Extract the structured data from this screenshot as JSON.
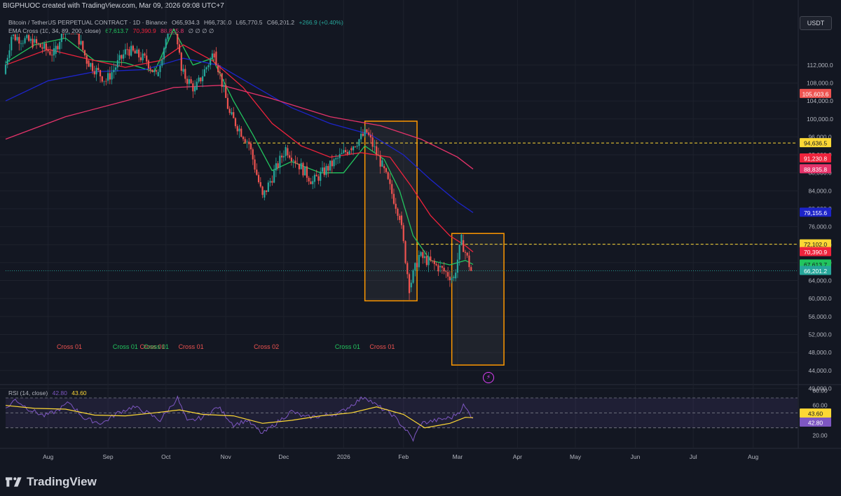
{
  "header": {
    "attribution": "BIGPHUOC created with TradingView.com, Mar 09, 2026 09:08 UTC+7"
  },
  "legend": {
    "symbol": "Bitcoin / TetherUS PERPETUAL CONTRACT · 1D · Binance",
    "open": "O65,934.3",
    "high": "H66,730.0",
    "low": "L65,770.5",
    "close": "C66,201.2",
    "change": "+266.9 (+0.40%)",
    "ema_label": "EMA Cross (10, 34, 89, 200, close)",
    "ema_val1": "67,613.7",
    "ema_val2": "70,390.9",
    "ema_val3": "88,835.8",
    "ema_rest": "∅ ∅ ∅ ∅",
    "rsi_label": "RSI (14, close)",
    "rsi_val": "42.80",
    "rsi_ma": "43.60"
  },
  "toolbar": {
    "currency": "USDT"
  },
  "brand": {
    "name": "TradingView"
  },
  "colors": {
    "background": "#131722",
    "up": "#26a69a",
    "down": "#ef5350",
    "ema10": "#22c55e",
    "ema34": "#ef233c",
    "ema89": "#1d24c9",
    "ema200": "#e5336a",
    "box": "#ff9800",
    "rsi": "#7e57c2",
    "rsi_ma": "#fdd835"
  },
  "chart_data": {
    "type": "candlestick",
    "y_axis": {
      "min": 38000,
      "max": 118000,
      "ticks": [
        "112,000.0",
        "108,000.0",
        "104,000.0",
        "100,000.0",
        "96,000.0",
        "92,000.0",
        "88,000.0",
        "84,000.0",
        "80,000.0",
        "76,000.0",
        "72,000.0",
        "68,000.0",
        "64,000.0",
        "60,000.0",
        "56,000.0",
        "52,000.0",
        "48,000.0",
        "44,000.0",
        "40,000.0"
      ],
      "tick_values": [
        112000,
        108000,
        104000,
        100000,
        96000,
        92000,
        88000,
        84000,
        80000,
        76000,
        72000,
        68000,
        64000,
        60000,
        56000,
        52000,
        48000,
        44000,
        40000
      ]
    },
    "x_axis": {
      "labels": [
        "Aug",
        "Sep",
        "Oct",
        "Nov",
        "Dec",
        "2026",
        "Feb",
        "Mar",
        "Apr",
        "May",
        "Jun",
        "Jul",
        "Aug"
      ],
      "label_dates": [
        "2025-08-01",
        "2025-09-01",
        "2025-10-01",
        "2025-11-01",
        "2025-12-01",
        "2026-01-01",
        "2026-02-01",
        "2026-03-01",
        "2026-04-01",
        "2026-05-01",
        "2026-06-01",
        "2026-07-01",
        "2026-08-01"
      ]
    },
    "price_labels": [
      {
        "text": "105,603.6",
        "value": 105603.6,
        "color": "#ef5350"
      },
      {
        "text": "94,636.5",
        "value": 94636.5,
        "color": "#fdd835"
      },
      {
        "text": "91,230.8",
        "value": 91230.8,
        "color": "#ef233c"
      },
      {
        "text": "88,835.8",
        "value": 88835.8,
        "color": "#e5336a"
      },
      {
        "text": "79,155.6",
        "value": 79155.6,
        "color": "#1d24c9"
      },
      {
        "text": "72,102.0",
        "value": 72102.0,
        "color": "#fdd835"
      },
      {
        "text": "70,390.9",
        "value": 70390.9,
        "color": "#ef233c"
      },
      {
        "text": "67,613.7",
        "value": 67613.7,
        "color": "#22c55e"
      },
      {
        "text": "66,201.2",
        "value": 66201.2,
        "color": "#26a69a"
      }
    ],
    "horizontal_lines": [
      {
        "value": 94636.5,
        "from_date": "2025-11-10",
        "color": "#fdd835",
        "style": "dashed"
      },
      {
        "value": 72102.0,
        "from_date": "2026-02-05",
        "color": "#fdd835",
        "style": "dashed"
      }
    ],
    "boxes": [
      {
        "from_date": "2026-01-12",
        "to_date": "2026-02-08",
        "top": 99500,
        "bottom": 59500
      },
      {
        "from_date": "2026-02-26",
        "to_date": "2026-03-25",
        "top": 74500,
        "bottom": 45200
      }
    ],
    "annotations": [
      {
        "text": "Cross 01",
        "date": "2025-08-12",
        "color": "#ef5350"
      },
      {
        "text": "Cross 01",
        "date": "2025-09-10",
        "color": "#22c55e"
      },
      {
        "text": "Cross 01",
        "date": "2025-09-24",
        "color": "#ef5350"
      },
      {
        "text": "Cross 01",
        "date": "2025-09-26",
        "color": "#22c55e"
      },
      {
        "text": "Cross 01",
        "date": "2025-10-14",
        "color": "#ef5350"
      },
      {
        "text": "Cross 02",
        "date": "2025-11-22",
        "color": "#ef5350"
      },
      {
        "text": "Cross 01",
        "date": "2026-01-03",
        "color": "#22c55e"
      },
      {
        "text": "Cross 01",
        "date": "2026-01-21",
        "color": "#ef5350"
      }
    ],
    "ema_lines": [
      {
        "name": "EMA 10",
        "color": "#22c55e",
        "points": [
          [
            "2025-07-10",
            112500
          ],
          [
            "2025-07-25",
            116500
          ],
          [
            "2025-08-10",
            118000
          ],
          [
            "2025-08-25",
            113000
          ],
          [
            "2025-09-10",
            112500
          ],
          [
            "2025-09-25",
            110500
          ],
          [
            "2025-10-05",
            120000
          ],
          [
            "2025-10-15",
            112000
          ],
          [
            "2025-10-25",
            113500
          ],
          [
            "2025-11-05",
            104000
          ],
          [
            "2025-11-15",
            96500
          ],
          [
            "2025-11-25",
            88500
          ],
          [
            "2025-12-05",
            90500
          ],
          [
            "2025-12-20",
            88000
          ],
          [
            "2026-01-01",
            88000
          ],
          [
            "2026-01-12",
            94000
          ],
          [
            "2026-01-22",
            91000
          ],
          [
            "2026-01-30",
            84000
          ],
          [
            "2026-02-06",
            74000
          ],
          [
            "2026-02-15",
            68500
          ],
          [
            "2026-02-25",
            67500
          ],
          [
            "2026-03-05",
            68500
          ],
          [
            "2026-03-09",
            67613.7
          ]
        ]
      },
      {
        "name": "EMA 34",
        "color": "#ef233c",
        "points": [
          [
            "2025-07-10",
            112000
          ],
          [
            "2025-08-01",
            115500
          ],
          [
            "2025-08-20",
            113500
          ],
          [
            "2025-09-10",
            111500
          ],
          [
            "2025-09-28",
            113000
          ],
          [
            "2025-10-10",
            116500
          ],
          [
            "2025-10-25",
            113000
          ],
          [
            "2025-11-10",
            107000
          ],
          [
            "2025-11-25",
            99000
          ],
          [
            "2025-12-10",
            94000
          ],
          [
            "2025-12-25",
            91500
          ],
          [
            "2026-01-10",
            92500
          ],
          [
            "2026-01-25",
            91500
          ],
          [
            "2026-02-05",
            85000
          ],
          [
            "2026-02-15",
            78500
          ],
          [
            "2026-02-25",
            74000
          ],
          [
            "2026-03-05",
            71800
          ],
          [
            "2026-03-09",
            70390.9
          ]
        ]
      },
      {
        "name": "EMA 89",
        "color": "#1d24c9",
        "points": [
          [
            "2025-07-10",
            104000
          ],
          [
            "2025-08-01",
            108500
          ],
          [
            "2025-08-25",
            110500
          ],
          [
            "2025-09-20",
            111000
          ],
          [
            "2025-10-10",
            113500
          ],
          [
            "2025-10-28",
            112000
          ],
          [
            "2025-11-15",
            107500
          ],
          [
            "2025-12-05",
            102500
          ],
          [
            "2025-12-25",
            99000
          ],
          [
            "2026-01-15",
            96500
          ],
          [
            "2026-02-01",
            92000
          ],
          [
            "2026-02-15",
            86500
          ],
          [
            "2026-03-01",
            81500
          ],
          [
            "2026-03-09",
            79155.6
          ]
        ]
      },
      {
        "name": "EMA 200",
        "color": "#e5336a",
        "points": [
          [
            "2025-07-10",
            95500
          ],
          [
            "2025-08-10",
            100500
          ],
          [
            "2025-09-10",
            104000
          ],
          [
            "2025-10-05",
            107000
          ],
          [
            "2025-10-30",
            107500
          ],
          [
            "2025-11-25",
            104500
          ],
          [
            "2025-12-25",
            100500
          ],
          [
            "2026-01-20",
            98500
          ],
          [
            "2026-02-10",
            95500
          ],
          [
            "2026-03-01",
            91500
          ],
          [
            "2026-03-09",
            88835.8
          ]
        ]
      }
    ],
    "candles_ohlc_anchor": [
      [
        "2025-07-10",
        110000
      ],
      [
        "2025-07-14",
        118500
      ],
      [
        "2025-07-25",
        117000
      ],
      [
        "2025-08-05",
        114500
      ],
      [
        "2025-08-13",
        123500
      ],
      [
        "2025-08-22",
        113000
      ],
      [
        "2025-09-01",
        108500
      ],
      [
        "2025-09-12",
        115500
      ],
      [
        "2025-09-22",
        113000
      ],
      [
        "2025-09-27",
        109500
      ],
      [
        "2025-10-06",
        124500
      ],
      [
        "2025-10-10",
        110500
      ],
      [
        "2025-10-17",
        106500
      ],
      [
        "2025-10-27",
        115000
      ],
      [
        "2025-11-04",
        101000
      ],
      [
        "2025-11-14",
        94500
      ],
      [
        "2025-11-21",
        82500
      ],
      [
        "2025-12-03",
        93500
      ],
      [
        "2025-12-17",
        86000
      ],
      [
        "2026-01-05",
        93500
      ],
      [
        "2026-01-14",
        97000
      ],
      [
        "2026-01-22",
        89500
      ],
      [
        "2026-01-31",
        78500
      ],
      [
        "2026-02-05",
        62500
      ],
      [
        "2026-02-10",
        69500
      ],
      [
        "2026-02-20",
        67000
      ],
      [
        "2026-02-28",
        64500
      ],
      [
        "2026-03-04",
        73000
      ],
      [
        "2026-03-09",
        66201.2
      ]
    ],
    "rsi": {
      "label": "RSI (14, close)",
      "y_ticks": [
        "80.00",
        "60.00",
        "20.00"
      ],
      "tick_values": [
        80,
        60,
        20
      ],
      "bands": [
        70,
        50,
        30
      ],
      "min": 10,
      "max": 85,
      "rsi_points": [
        [
          "2025-07-10",
          55
        ],
        [
          "2025-07-15",
          68
        ],
        [
          "2025-07-22",
          55
        ],
        [
          "2025-07-30",
          46
        ],
        [
          "2025-08-05",
          52
        ],
        [
          "2025-08-12",
          64
        ],
        [
          "2025-08-20",
          42
        ],
        [
          "2025-08-29",
          36
        ],
        [
          "2025-09-06",
          50
        ],
        [
          "2025-09-14",
          58
        ],
        [
          "2025-09-20",
          52
        ],
        [
          "2025-09-28",
          40
        ],
        [
          "2025-10-04",
          60
        ],
        [
          "2025-10-07",
          70
        ],
        [
          "2025-10-12",
          38
        ],
        [
          "2025-10-20",
          44
        ],
        [
          "2025-10-28",
          58
        ],
        [
          "2025-11-05",
          34
        ],
        [
          "2025-11-12",
          40
        ],
        [
          "2025-11-20",
          22
        ],
        [
          "2025-11-28",
          38
        ],
        [
          "2025-12-05",
          52
        ],
        [
          "2025-12-12",
          44
        ],
        [
          "2025-12-22",
          46
        ],
        [
          "2025-12-30",
          50
        ],
        [
          "2026-01-06",
          62
        ],
        [
          "2026-01-12",
          72
        ],
        [
          "2026-01-18",
          60
        ],
        [
          "2026-01-26",
          48
        ],
        [
          "2026-02-02",
          28
        ],
        [
          "2026-02-06",
          14
        ],
        [
          "2026-02-10",
          36
        ],
        [
          "2026-02-18",
          40
        ],
        [
          "2026-02-26",
          44
        ],
        [
          "2026-03-02",
          52
        ],
        [
          "2026-03-04",
          60
        ],
        [
          "2026-03-09",
          42.8
        ]
      ],
      "ma_points": [
        [
          "2025-07-10",
          60
        ],
        [
          "2025-07-25",
          56
        ],
        [
          "2025-08-10",
          55
        ],
        [
          "2025-08-25",
          47
        ],
        [
          "2025-09-10",
          46
        ],
        [
          "2025-09-25",
          50
        ],
        [
          "2025-10-08",
          54
        ],
        [
          "2025-10-20",
          48
        ],
        [
          "2025-11-05",
          46
        ],
        [
          "2025-11-20",
          36
        ],
        [
          "2025-12-05",
          40
        ],
        [
          "2025-12-20",
          46
        ],
        [
          "2026-01-05",
          50
        ],
        [
          "2026-01-18",
          58
        ],
        [
          "2026-02-01",
          48
        ],
        [
          "2026-02-12",
          30
        ],
        [
          "2026-02-25",
          36
        ],
        [
          "2026-03-05",
          44
        ],
        [
          "2026-03-09",
          43.6
        ]
      ],
      "value_labels": [
        {
          "text": "43.60",
          "value": 43.6,
          "color": "#fdd835"
        },
        {
          "text": "42.80",
          "value": 42.8,
          "color": "#7e57c2"
        }
      ]
    }
  }
}
